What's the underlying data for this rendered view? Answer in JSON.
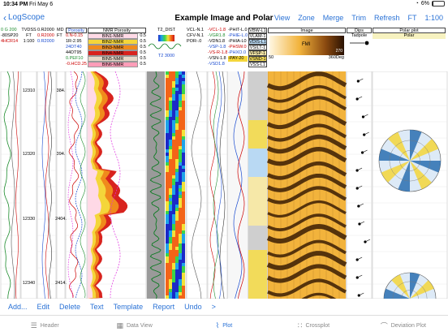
{
  "status": {
    "time": "10:34 PM",
    "day": "Fri May 6",
    "battery": "6%",
    "battery_level": 0.06
  },
  "nav": {
    "back_label": "LogScope",
    "title": "Example Image and Polar",
    "actions": [
      "View",
      "Zone",
      "Merge",
      "Trim",
      "Refresh",
      "FT",
      "1:100"
    ]
  },
  "headers": {
    "curves_left": [
      "0 G 200",
      "-80SP20",
      "4HCR14"
    ],
    "tvdss": [
      "TVDSS",
      "FT",
      "1:100"
    ],
    "r2000": [
      "0.R2000",
      "0.R2000",
      "0.R2000"
    ],
    "md": [
      "MD",
      "FT"
    ],
    "porosity_title": "Porosity",
    "porosity_rows": [
      "0.N-0.15",
      "1R-2.95",
      "24DT40",
      "44DT95",
      "0.PEF10",
      "-0.HCD.25"
    ],
    "nmr_title": "NMR Porosity",
    "nmr_bins": [
      "BIN1-NMR",
      "BIN2-NMR",
      "BIN3-NMR",
      "BIN4-NMR",
      "BIN5-NMR",
      "BIN6-NMR"
    ],
    "nmr_scale": [
      "0.5",
      "0.5",
      "0.5",
      "0.5",
      "0.5",
      "0.5"
    ],
    "t2_title": "T2_DIST",
    "t2_range": "T2 3000",
    "vcl_rows": [
      "VCL-N.1",
      "CFV-N.1",
      "POR-.0"
    ],
    "vgr_rows": [
      "-VCL-1.8",
      "-VGR1.8",
      "-VDN1.8",
      "-VSP-1.8",
      "-VS-R-1.8",
      "-VSN-1.8",
      "-VSD1.8"
    ],
    "phit_rows": [
      "-PHIT-L.0",
      "-PHIE-L.0",
      "-PHIA-L0",
      "-PHSW.0",
      "-PHXO.0",
      "-PAY-20"
    ],
    "vbw_rows": [
      "VBW-L1",
      "VLAM-1",
      "VDIS-L1",
      "VSILT-1",
      "VFSP-1",
      "VSND-1",
      "VSS-L1"
    ],
    "image_title": "Image",
    "image_label": "FMI",
    "image_min": "50",
    "image_max": "270",
    "image_deg": "360Deg",
    "dips_title": "Dips",
    "dips_sub": "Tadpole",
    "polar_title": "Polar plot",
    "polar_sub": "Polar"
  },
  "depths_tvd": [
    "12310",
    "12320",
    "12330",
    "12340"
  ],
  "depths_md": [
    "384.",
    "394.",
    "2404.",
    "2414."
  ],
  "toolbar": [
    "Add...",
    "Edit",
    "Delete",
    "Text",
    "Template",
    "Report",
    "Undo",
    ">"
  ],
  "tabs": [
    {
      "label": "Header",
      "icon": "header-icon",
      "active": false
    },
    {
      "label": "Data View",
      "icon": "data-view-icon",
      "active": false
    },
    {
      "label": "Plot",
      "icon": "plot-icon",
      "active": true
    },
    {
      "label": "Crossplot",
      "icon": "crossplot-icon",
      "active": false
    },
    {
      "label": "Deviation Plot",
      "icon": "deviation-plot-icon",
      "active": false
    }
  ],
  "colors": {
    "accent": "#2a72d6",
    "nmr_red": "#d8231e",
    "nmr_orange": "#f08a1c",
    "nmr_yellow": "#f4d63a",
    "image_dark": "#3a1c04",
    "image_light": "#f2b33c"
  }
}
